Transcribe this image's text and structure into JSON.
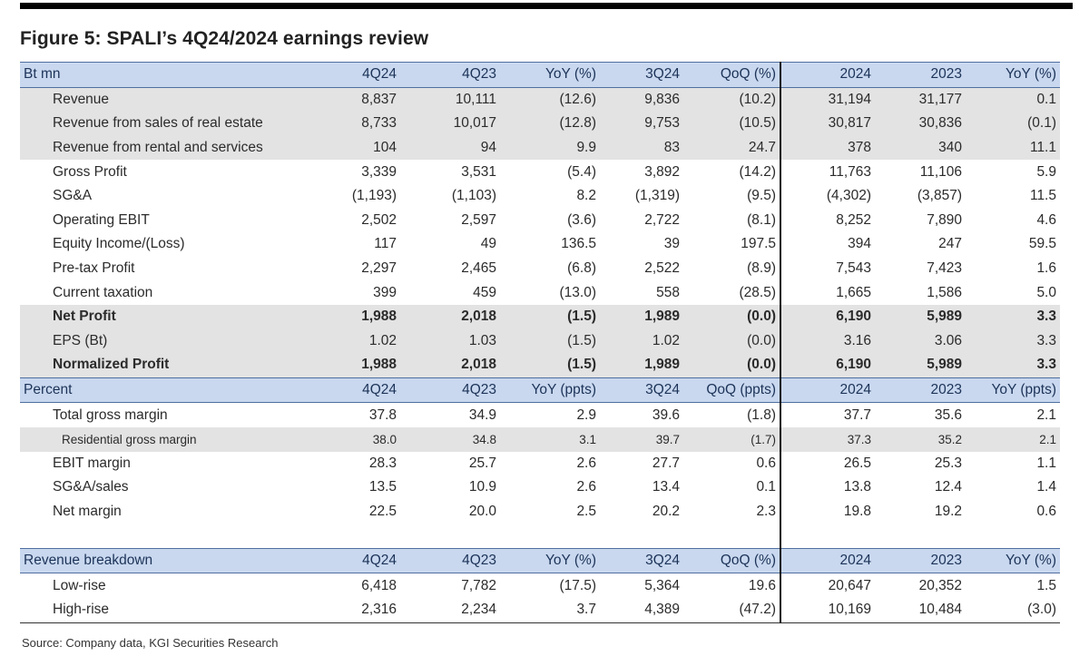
{
  "title": "Figure 5: SPALI’s 4Q24/2024 earnings review",
  "source": "Source: Company data, KGI Securities Research",
  "sections": [
    {
      "key": "btmn",
      "header": [
        "Bt mn",
        "4Q24",
        "4Q23",
        "YoY (%)",
        "3Q24",
        "QoQ (%)",
        "2024",
        "2023",
        "YoY (%)"
      ],
      "rows": [
        {
          "cells": [
            "Revenue",
            "8,837",
            "10,111",
            "(12.6)",
            "9,836",
            "(10.2)",
            "31,194",
            "31,177",
            "0.1"
          ]
        },
        {
          "cells": [
            "Revenue from sales of real estate",
            "8,733",
            "10,017",
            "(12.8)",
            "9,753",
            "(10.5)",
            "30,817",
            "30,836",
            "(0.1)"
          ]
        },
        {
          "cells": [
            "Revenue from rental and services",
            "104",
            "94",
            "9.9",
            "83",
            "24.7",
            "378",
            "340",
            "11.1"
          ]
        },
        {
          "cells": [
            "Gross Profit",
            "3,339",
            "3,531",
            "(5.4)",
            "3,892",
            "(14.2)",
            "11,763",
            "11,106",
            "5.9"
          ]
        },
        {
          "cells": [
            "SG&A",
            "(1,193)",
            "(1,103)",
            "8.2",
            "(1,319)",
            "(9.5)",
            "(4,302)",
            "(3,857)",
            "11.5"
          ]
        },
        {
          "cells": [
            "Operating EBIT",
            "2,502",
            "2,597",
            "(3.6)",
            "2,722",
            "(8.1)",
            "8,252",
            "7,890",
            "4.6"
          ]
        },
        {
          "cells": [
            "Equity Income/(Loss)",
            "117",
            "49",
            "136.5",
            "39",
            "197.5",
            "394",
            "247",
            "59.5"
          ]
        },
        {
          "cells": [
            "Pre-tax Profit",
            "2,297",
            "2,465",
            "(6.8)",
            "2,522",
            "(8.9)",
            "7,543",
            "7,423",
            "1.6"
          ]
        },
        {
          "cells": [
            "Current taxation",
            "399",
            "459",
            "(13.0)",
            "558",
            "(28.5)",
            "1,665",
            "1,586",
            "5.0"
          ]
        },
        {
          "cells": [
            "Net Profit",
            "1,988",
            "2,018",
            "(1.5)",
            "1,989",
            "(0.0)",
            "6,190",
            "5,989",
            "3.3"
          ]
        },
        {
          "cells": [
            "EPS (Bt)",
            "1.02",
            "1.03",
            "(1.5)",
            "1.02",
            "(0.0)",
            "3.16",
            "3.06",
            "3.3"
          ]
        },
        {
          "cells": [
            "Normalized Profit",
            "1,988",
            "2,018",
            "(1.5)",
            "1,989",
            "(0.0)",
            "6,190",
            "5,989",
            "3.3"
          ]
        }
      ]
    },
    {
      "key": "percent",
      "header": [
        "Percent",
        "4Q24",
        "4Q23",
        "YoY (ppts)",
        "3Q24",
        "QoQ (ppts)",
        "2024",
        "2023",
        "YoY (ppts)"
      ],
      "rows": [
        {
          "cells": [
            "Total gross margin",
            "37.8",
            "34.9",
            "2.9",
            "39.6",
            "(1.8)",
            "37.7",
            "35.6",
            "2.1"
          ]
        },
        {
          "cells": [
            "Residential gross margin",
            "38.0",
            "34.8",
            "3.1",
            "39.7",
            "(1.7)",
            "37.3",
            "35.2",
            "2.1"
          ]
        },
        {
          "cells": [
            "EBIT margin",
            "28.3",
            "25.7",
            "2.6",
            "27.7",
            "0.6",
            "26.5",
            "25.3",
            "1.1"
          ]
        },
        {
          "cells": [
            "SG&A/sales",
            "13.5",
            "10.9",
            "2.6",
            "13.4",
            "0.1",
            "13.8",
            "12.4",
            "1.4"
          ]
        },
        {
          "cells": [
            "Net margin",
            "22.5",
            "20.0",
            "2.5",
            "20.2",
            "2.3",
            "19.8",
            "19.2",
            "0.6"
          ]
        }
      ]
    },
    {
      "key": "breakdown",
      "header": [
        "Revenue breakdown",
        "4Q24",
        "4Q23",
        "YoY (%)",
        "3Q24",
        "QoQ (%)",
        "2024",
        "2023",
        "YoY (%)"
      ],
      "rows": [
        {
          "cells": [
            "Low-rise",
            "6,418",
            "7,782",
            "(17.5)",
            "5,364",
            "19.6",
            "20,647",
            "20,352",
            "1.5"
          ]
        },
        {
          "cells": [
            "High-rise",
            "2,316",
            "2,234",
            "3.7",
            "4,389",
            "(47.2)",
            "10,169",
            "10,484",
            "(3.0)"
          ]
        }
      ]
    }
  ]
}
